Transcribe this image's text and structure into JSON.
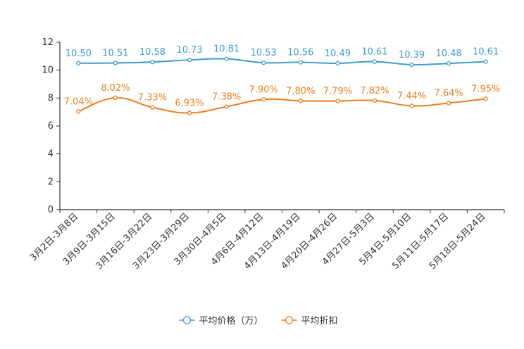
{
  "chart_data": {
    "type": "line",
    "title": "",
    "xlabel": "",
    "ylabel": "",
    "ylim": [
      0,
      12
    ],
    "yticks": [
      0,
      2,
      4,
      6,
      8,
      10,
      12
    ],
    "grid": false,
    "legend_position": "bottom-center",
    "categories": [
      "3月2日-3月8日",
      "3月9日-3月15日",
      "3月16日-3月22日",
      "3月23日-3月29日",
      "3月30日-4月5日",
      "4月6日-4月12日",
      "4月13日-4月19日",
      "4月20日-4月26日",
      "4月27日-5月3日",
      "5月4日-5月10日",
      "5月11日-5月17日",
      "5月18日-5月24日"
    ],
    "series": [
      {
        "name": "平均价格（万）",
        "color": "#3d9bd1",
        "values": [
          10.5,
          10.51,
          10.58,
          10.73,
          10.81,
          10.53,
          10.56,
          10.49,
          10.61,
          10.39,
          10.48,
          10.61
        ],
        "labels": [
          "10.50",
          "10.51",
          "10.58",
          "10.73",
          "10.81",
          "10.53",
          "10.56",
          "10.49",
          "10.61",
          "10.39",
          "10.48",
          "10.61"
        ]
      },
      {
        "name": "平均折扣",
        "color": "#f07c1a",
        "values": [
          7.04,
          8.02,
          7.33,
          6.93,
          7.38,
          7.9,
          7.8,
          7.79,
          7.82,
          7.44,
          7.64,
          7.95
        ],
        "labels": [
          "7.04%",
          "8.02%",
          "7.33%",
          "6.93%",
          "7.38%",
          "7.90%",
          "7.80%",
          "7.79%",
          "7.82%",
          "7.44%",
          "7.64%",
          "7.95%"
        ]
      }
    ]
  }
}
